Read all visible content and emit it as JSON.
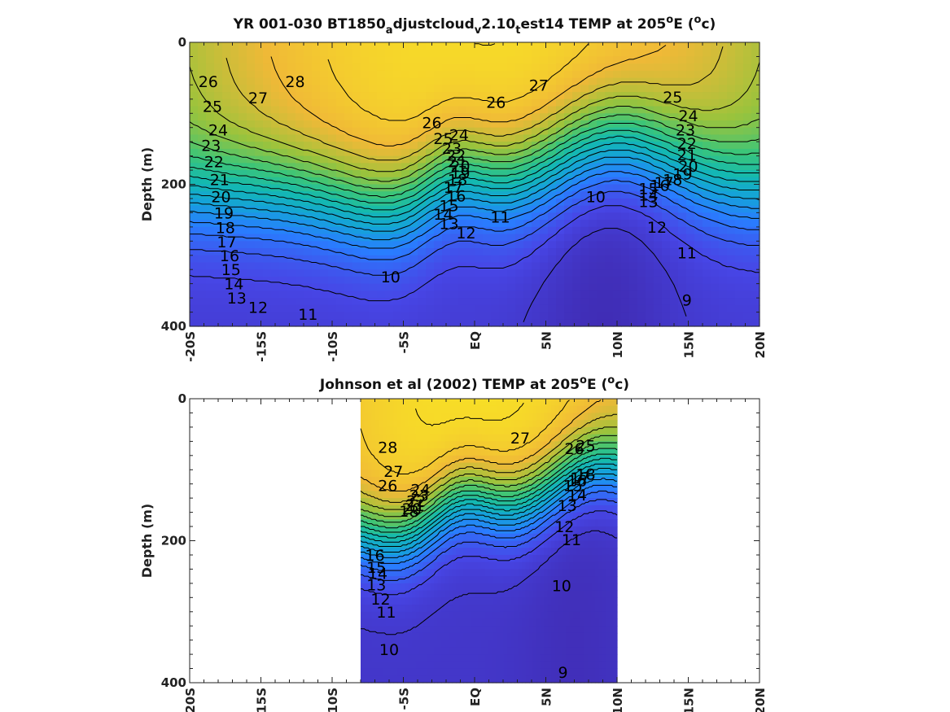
{
  "chart_data": [
    {
      "type": "contour",
      "title": {
        "prefix": "YR 001-030 BT1850",
        "sub1": "a",
        "mid": "djustcloud",
        "sub2": "v",
        "mid2": "2.10",
        "sub3": "t",
        "post": "est14 TEMP at 205",
        "sup1": "o",
        "post2": "E (",
        "sup2": "o",
        "post3": "c)"
      },
      "ylabel": "Depth (m)",
      "xlabel": "",
      "xlim": [
        -20,
        20
      ],
      "ylim": [
        0,
        400
      ],
      "x_ticks": [
        "-20S",
        "-15S",
        "-10S",
        "-5S",
        "EQ",
        "5N",
        "10N",
        "15N",
        "20N"
      ],
      "y_ticks": [
        "0",
        "200",
        "400"
      ],
      "data_extent_x": [
        -20,
        20
      ],
      "contour_levels": [
        9,
        10,
        11,
        12,
        13,
        14,
        15,
        16,
        17,
        18,
        19,
        20,
        21,
        22,
        23,
        24,
        25,
        26,
        27,
        28
      ],
      "contour_labels": [
        {
          "text": "26",
          "x": -18.7,
          "y": 55
        },
        {
          "text": "25",
          "x": -18.4,
          "y": 90
        },
        {
          "text": "24",
          "x": -18.0,
          "y": 123
        },
        {
          "text": "23",
          "x": -18.5,
          "y": 145
        },
        {
          "text": "22",
          "x": -18.3,
          "y": 168
        },
        {
          "text": "21",
          "x": -17.9,
          "y": 193
        },
        {
          "text": "20",
          "x": -17.8,
          "y": 217
        },
        {
          "text": "19",
          "x": -17.6,
          "y": 240
        },
        {
          "text": "18",
          "x": -17.5,
          "y": 261
        },
        {
          "text": "17",
          "x": -17.4,
          "y": 281
        },
        {
          "text": "16",
          "x": -17.2,
          "y": 300
        },
        {
          "text": "15",
          "x": -17.1,
          "y": 320
        },
        {
          "text": "14",
          "x": -16.9,
          "y": 340
        },
        {
          "text": "13",
          "x": -16.7,
          "y": 360
        },
        {
          "text": "12",
          "x": -15.2,
          "y": 373
        },
        {
          "text": "11",
          "x": -11.7,
          "y": 383
        },
        {
          "text": "27",
          "x": -15.2,
          "y": 78
        },
        {
          "text": "28",
          "x": -12.6,
          "y": 55
        },
        {
          "text": "26",
          "x": -3.0,
          "y": 113
        },
        {
          "text": "25",
          "x": -2.2,
          "y": 135
        },
        {
          "text": "24",
          "x": -1.1,
          "y": 130
        },
        {
          "text": "23",
          "x": -1.6,
          "y": 149
        },
        {
          "text": "22",
          "x": -1.3,
          "y": 159
        },
        {
          "text": "21",
          "x": -1.2,
          "y": 168
        },
        {
          "text": "20",
          "x": -1.0,
          "y": 174
        },
        {
          "text": "19",
          "x": -1.0,
          "y": 184
        },
        {
          "text": "18",
          "x": -1.2,
          "y": 193
        },
        {
          "text": "17",
          "x": -1.5,
          "y": 204
        },
        {
          "text": "16",
          "x": -1.3,
          "y": 216
        },
        {
          "text": "15",
          "x": -1.8,
          "y": 230
        },
        {
          "text": "14",
          "x": -2.2,
          "y": 242
        },
        {
          "text": "13",
          "x": -1.8,
          "y": 255
        },
        {
          "text": "12",
          "x": -0.6,
          "y": 268
        },
        {
          "text": "11",
          "x": 1.8,
          "y": 246
        },
        {
          "text": "10",
          "x": -5.9,
          "y": 330
        },
        {
          "text": "26",
          "x": 1.5,
          "y": 84
        },
        {
          "text": "27",
          "x": 4.5,
          "y": 60
        },
        {
          "text": "10",
          "x": 8.5,
          "y": 217
        },
        {
          "text": "25",
          "x": 13.9,
          "y": 77
        },
        {
          "text": "24",
          "x": 15.0,
          "y": 103
        },
        {
          "text": "23",
          "x": 14.8,
          "y": 123
        },
        {
          "text": "22",
          "x": 14.9,
          "y": 142
        },
        {
          "text": "21",
          "x": 14.9,
          "y": 158
        },
        {
          "text": "20",
          "x": 15.0,
          "y": 174
        },
        {
          "text": "19",
          "x": 14.6,
          "y": 185
        },
        {
          "text": "18",
          "x": 13.9,
          "y": 193
        },
        {
          "text": "17",
          "x": 13.3,
          "y": 197
        },
        {
          "text": "16",
          "x": 13.0,
          "y": 201
        },
        {
          "text": "15",
          "x": 12.2,
          "y": 206
        },
        {
          "text": "14",
          "x": 12.2,
          "y": 215
        },
        {
          "text": "13",
          "x": 12.2,
          "y": 224
        },
        {
          "text": "12",
          "x": 12.8,
          "y": 260
        },
        {
          "text": "11",
          "x": 14.9,
          "y": 296
        },
        {
          "text": "9",
          "x": 14.9,
          "y": 363
        }
      ]
    },
    {
      "type": "contour",
      "title": {
        "prefix": "Johnson et al (2002) TEMP at 205",
        "sup1": "o",
        "post": "E (",
        "sup2": "o",
        "post2": "c)"
      },
      "ylabel": "Depth (m)",
      "xlabel": "",
      "xlim": [
        -20,
        20
      ],
      "ylim": [
        0,
        400
      ],
      "x_ticks": [
        "-20S",
        "-15S",
        "-10S",
        "-5S",
        "EQ",
        "5N",
        "10N",
        "15N",
        "20N"
      ],
      "y_ticks": [
        "0",
        "200",
        "400"
      ],
      "data_extent_x": [
        -8,
        10
      ],
      "contour_levels": [
        9,
        10,
        11,
        12,
        13,
        14,
        15,
        16,
        17,
        18,
        19,
        20,
        21,
        22,
        23,
        24,
        25,
        26,
        27,
        28
      ],
      "contour_labels": [
        {
          "text": "28",
          "x": -6.1,
          "y": 68
        },
        {
          "text": "27",
          "x": -5.7,
          "y": 102
        },
        {
          "text": "26",
          "x": -6.1,
          "y": 122
        },
        {
          "text": "24",
          "x": -3.8,
          "y": 128
        },
        {
          "text": "23",
          "x": -3.9,
          "y": 136
        },
        {
          "text": "22",
          "x": -4.1,
          "y": 144
        },
        {
          "text": "21",
          "x": -4.2,
          "y": 150
        },
        {
          "text": "20",
          "x": -4.4,
          "y": 155
        },
        {
          "text": "18",
          "x": -4.6,
          "y": 158
        },
        {
          "text": "27",
          "x": 3.2,
          "y": 55
        },
        {
          "text": "26",
          "x": 7.0,
          "y": 70
        },
        {
          "text": "25",
          "x": 7.8,
          "y": 66
        },
        {
          "text": "18",
          "x": 7.8,
          "y": 106
        },
        {
          "text": "17",
          "x": 7.4,
          "y": 111
        },
        {
          "text": "16",
          "x": 7.2,
          "y": 115
        },
        {
          "text": "15",
          "x": 6.9,
          "y": 122
        },
        {
          "text": "14",
          "x": 7.2,
          "y": 135
        },
        {
          "text": "13",
          "x": 6.5,
          "y": 150
        },
        {
          "text": "12",
          "x": 6.3,
          "y": 180
        },
        {
          "text": "11",
          "x": 6.8,
          "y": 198
        },
        {
          "text": "16",
          "x": -7.0,
          "y": 220
        },
        {
          "text": "15",
          "x": -6.9,
          "y": 237
        },
        {
          "text": "14",
          "x": -6.8,
          "y": 246
        },
        {
          "text": "13",
          "x": -6.9,
          "y": 262
        },
        {
          "text": "12",
          "x": -6.6,
          "y": 282
        },
        {
          "text": "11",
          "x": -6.2,
          "y": 300
        },
        {
          "text": "10",
          "x": -6.0,
          "y": 353
        },
        {
          "text": "10",
          "x": 6.1,
          "y": 263
        },
        {
          "text": "9",
          "x": 6.2,
          "y": 385
        }
      ]
    }
  ]
}
